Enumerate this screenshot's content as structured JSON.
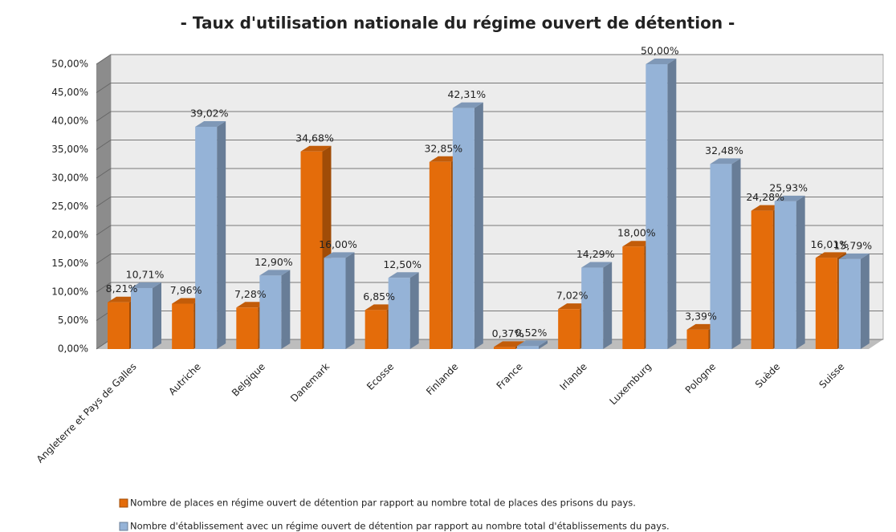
{
  "chart_data": {
    "type": "bar3d",
    "title": "- Taux d'utilisation nationale du régime ouvert de détention -",
    "categories": [
      "Angleterre et Pays de Galles",
      "Autriche",
      "Belgique",
      "Danemark",
      "Ecosse",
      "Finlande",
      "France",
      "Irlande",
      "Luxemburg",
      "Pologne",
      "Suède",
      "Suisse"
    ],
    "series": [
      {
        "name": "Nombre de places en régime ouvert de détention par rapport au nombre total de places des prisons du pays.",
        "color": "#e46c0a",
        "values": [
          8.21,
          7.96,
          7.28,
          34.68,
          6.85,
          32.85,
          0.37,
          7.02,
          18.0,
          3.39,
          24.28,
          16.01
        ],
        "value_labels": [
          "8,21%",
          "7,96%",
          "7,28%",
          "34,68%",
          "6,85%",
          "32,85%",
          "0,37%",
          "7,02%",
          "18,00%",
          "3,39%",
          "24,28%",
          "16,01%"
        ]
      },
      {
        "name": "Nombre d'établissement avec un régime ouvert de détention par rapport au nombre total d'établissements du pays.",
        "color": "#95b3d7",
        "values": [
          10.71,
          39.02,
          12.9,
          16.0,
          12.5,
          42.31,
          0.52,
          14.29,
          50.0,
          32.48,
          25.93,
          15.79
        ],
        "value_labels": [
          "10,71%",
          "39,02%",
          "12,90%",
          "16,00%",
          "12,50%",
          "42,31%",
          "0,52%",
          "14,29%",
          "50,00%",
          "32,48%",
          "25,93%",
          "15,79%"
        ]
      }
    ],
    "ylim": [
      0,
      50
    ],
    "yticks": [
      {
        "value": 0,
        "label": "0,00%"
      },
      {
        "value": 5,
        "label": "5,00%"
      },
      {
        "value": 10,
        "label": "10,00%"
      },
      {
        "value": 15,
        "label": "15,00%"
      },
      {
        "value": 20,
        "label": "20,00%"
      },
      {
        "value": 25,
        "label": "25,00%"
      },
      {
        "value": 30,
        "label": "30,00%"
      },
      {
        "value": 35,
        "label": "35,00%"
      },
      {
        "value": 40,
        "label": "40,00%"
      },
      {
        "value": 45,
        "label": "45,00%"
      },
      {
        "value": 50,
        "label": "50,00%"
      }
    ],
    "grid": true
  }
}
